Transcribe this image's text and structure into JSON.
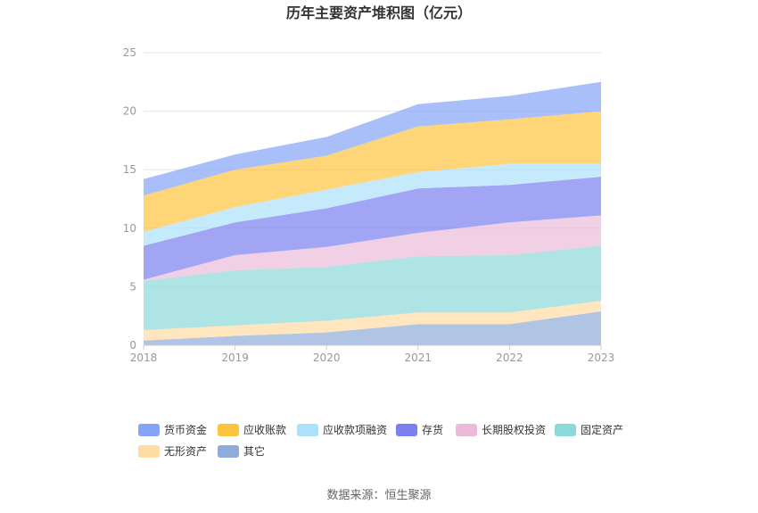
{
  "chart_data": {
    "type": "area",
    "stacked": true,
    "title": "历年主要资产堆积图（亿元）",
    "source": "数据来源：恒生聚源",
    "x": [
      "2018",
      "2019",
      "2020",
      "2021",
      "2022",
      "2023"
    ],
    "ylim": [
      0,
      25
    ],
    "yticks": [
      "0",
      "5",
      "10",
      "15",
      "20",
      "25"
    ],
    "grid": true,
    "legend_position": "bottom",
    "series": [
      {
        "name": "其它",
        "color": "#8eacd8",
        "values": [
          0.4,
          0.8,
          1.1,
          1.8,
          1.8,
          2.9
        ]
      },
      {
        "name": "无形资产",
        "color": "#ffdca3",
        "values": [
          0.9,
          0.9,
          1.0,
          1.0,
          1.0,
          0.9
        ]
      },
      {
        "name": "固定资产",
        "color": "#8cd9d9",
        "values": [
          4.2,
          4.7,
          4.6,
          4.8,
          4.9,
          4.7
        ]
      },
      {
        "name": "长期股权投资",
        "color": "#ebbad9",
        "values": [
          0.1,
          1.3,
          1.7,
          2.0,
          2.8,
          2.6
        ]
      },
      {
        "name": "存货",
        "color": "#7b7ff0",
        "values": [
          2.9,
          2.8,
          3.3,
          3.8,
          3.2,
          3.3
        ]
      },
      {
        "name": "应收款项融资",
        "color": "#ace1fa",
        "values": [
          1.2,
          1.3,
          1.6,
          1.4,
          1.8,
          1.1
        ]
      },
      {
        "name": "应收账款",
        "color": "#fdc53e",
        "values": [
          3.1,
          3.2,
          2.9,
          3.9,
          3.8,
          4.5
        ]
      },
      {
        "name": "货币资金",
        "color": "#85a4f7",
        "values": [
          1.4,
          1.3,
          1.6,
          1.9,
          2.0,
          2.5
        ]
      }
    ],
    "legend_order": [
      "货币资金",
      "应收账款",
      "应收款项融资",
      "存货",
      "长期股权投资",
      "固定资产",
      "无形资产",
      "其它"
    ]
  }
}
